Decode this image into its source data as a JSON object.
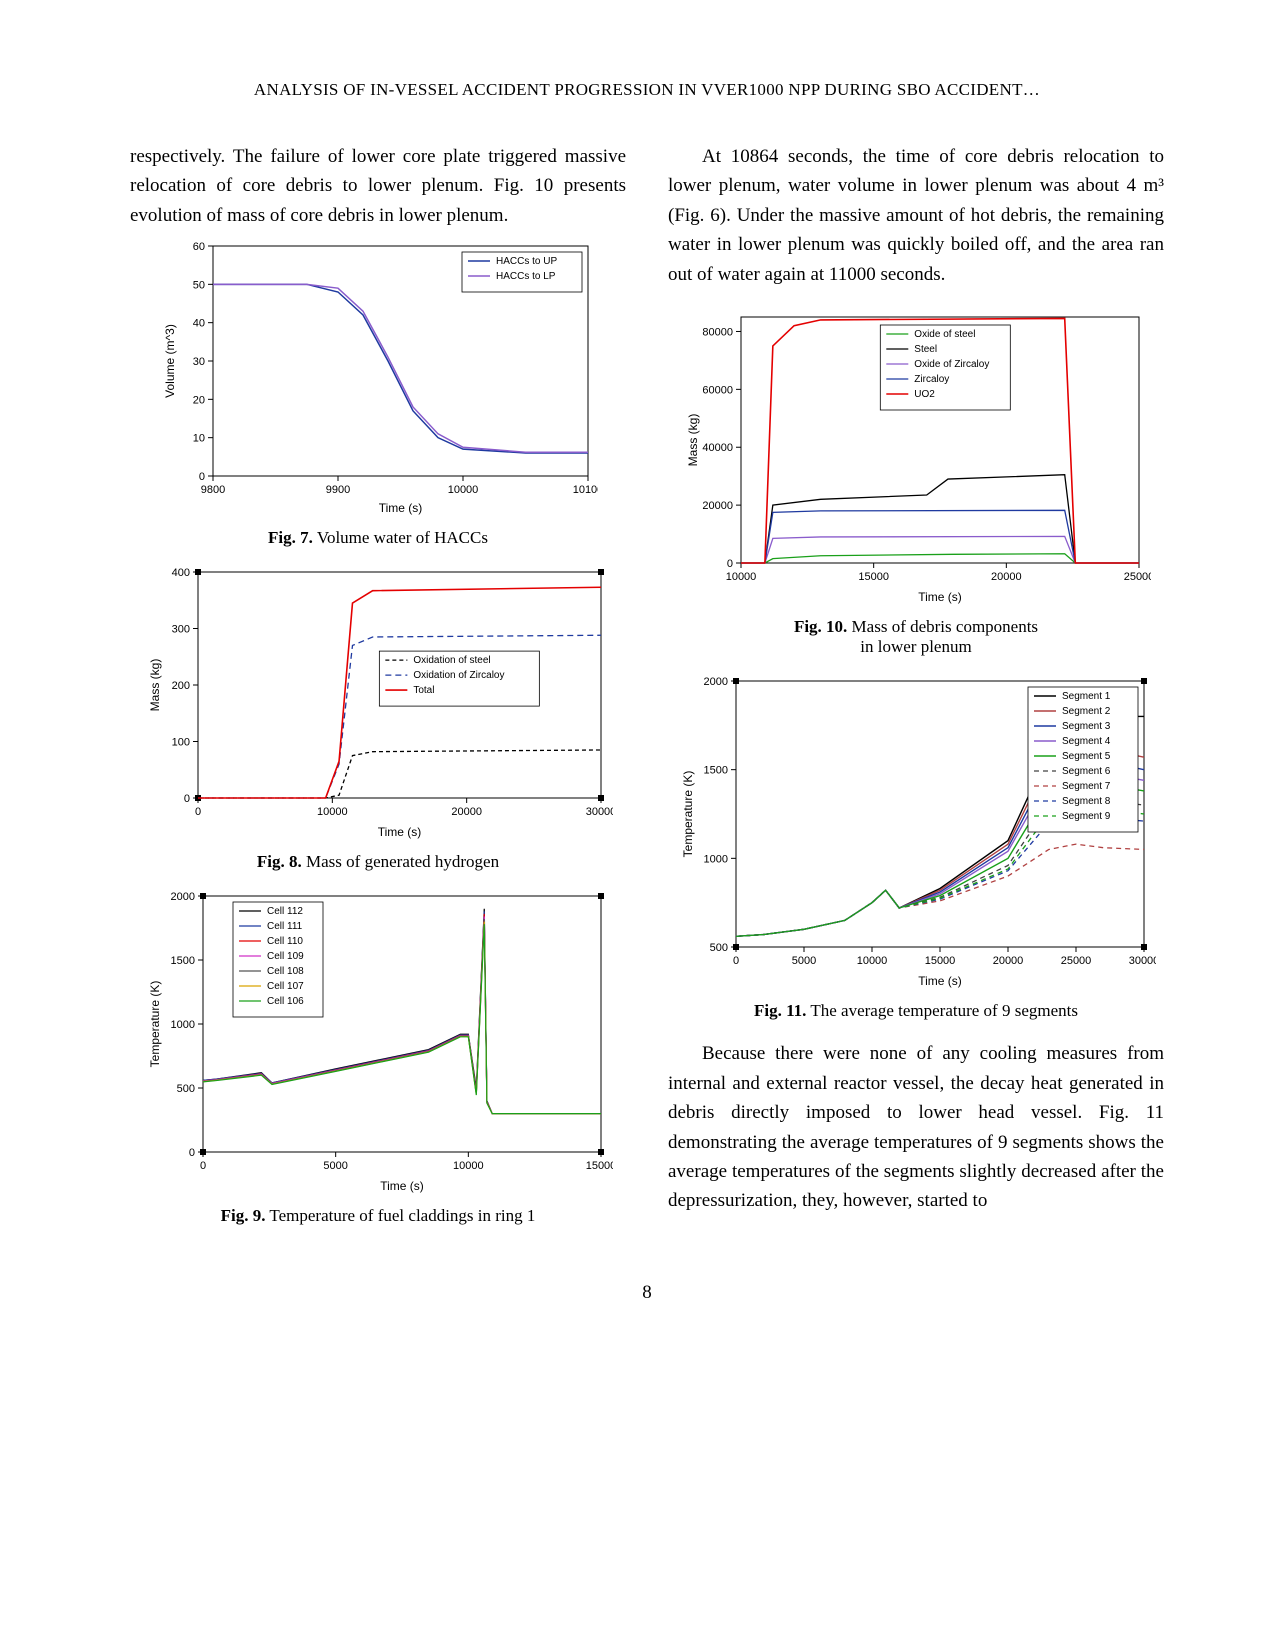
{
  "runningHead": "ANALYSIS OF IN-VESSEL ACCIDENT PROGRESSION IN VVER1000 NPP DURING SBO ACCIDENT…",
  "pageNumber": "8",
  "leftCol": {
    "para1": "respectively. The failure of lower core plate triggered massive relocation of core debris to lower plenum. Fig. 10 presents evolution of mass of core debris in lower plenum."
  },
  "rightCol": {
    "para1": "At 10864 seconds, the time of core debris relocation to lower plenum, water volume in lower plenum was about 4 m³ (Fig. 6). Under the massive amount of hot debris, the remaining water in lower plenum was quickly boiled off, and the area ran out of water again at 11000 seconds.",
    "para2": "Because there were none of any cooling measures from internal and external reactor vessel, the decay heat generated in debris directly imposed to lower head vessel. Fig. 11 demonstrating the average temperatures of 9 segments shows the average temperatures of the segments slightly decreased after the depressurization, they, however, started to"
  },
  "fig7": {
    "type": "line",
    "title": "Volume water of HACCs",
    "captionPrefix": "Fig. 7.",
    "caption": "Volume water of HACCs",
    "xlabel": "Time (s)",
    "ylabel": "Volume (m^3)",
    "label_fontsize": 11,
    "xlim": [
      9800,
      10100
    ],
    "xtick_step": 100,
    "ylim": [
      0,
      60
    ],
    "ytick_step": 10,
    "background_color": "#ffffff",
    "axis_color": "#000000",
    "series": [
      {
        "name": "HACCs to UP",
        "color": "#1f3aa0",
        "width": 1.5,
        "x": [
          9800,
          9875,
          9900,
          9920,
          9940,
          9960,
          9980,
          10000,
          10050,
          10100
        ],
        "y": [
          50,
          50,
          48,
          42,
          30,
          17,
          10,
          7,
          6,
          6
        ]
      },
      {
        "name": "HACCs to LP",
        "color": "#8a5ccc",
        "width": 1.5,
        "x": [
          9800,
          9875,
          9900,
          9920,
          9940,
          9960,
          9980,
          10000,
          10050,
          10100
        ],
        "y": [
          50,
          50,
          49,
          43,
          31,
          18,
          11,
          7.5,
          6.2,
          6.2
        ]
      }
    ],
    "legend_position": "top-right"
  },
  "fig8": {
    "type": "line",
    "captionPrefix": "Fig. 8.",
    "caption": "Mass of generated hydrogen",
    "xlabel": "Time (s)",
    "ylabel": "Mass (kg)",
    "label_fontsize": 11,
    "xlim": [
      0,
      30000
    ],
    "xtick_step": 10000,
    "ylim": [
      0,
      400
    ],
    "ytick_step": 100,
    "background_color": "#ffffff",
    "series": [
      {
        "name": "Oxidation of steel",
        "color": "#000000",
        "dash": "4,3",
        "width": 1.3,
        "x": [
          0,
          9500,
          10500,
          11500,
          13000,
          30000
        ],
        "y": [
          0,
          0,
          5,
          75,
          82,
          85
        ]
      },
      {
        "name": "Oxidation of Zircaloy",
        "color": "#1f3aa0",
        "dash": "6,4",
        "width": 1.3,
        "x": [
          0,
          9500,
          10500,
          11500,
          13000,
          30000
        ],
        "y": [
          0,
          0,
          60,
          270,
          285,
          288
        ]
      },
      {
        "name": "Total",
        "color": "#e40000",
        "width": 1.6,
        "x": [
          0,
          9500,
          10500,
          11500,
          13000,
          30000
        ],
        "y": [
          0,
          0,
          65,
          345,
          367,
          373
        ]
      }
    ],
    "legend_position": "center-right"
  },
  "fig9": {
    "type": "line",
    "captionPrefix": "Fig. 9.",
    "caption": "Temperature of fuel claddings in ring 1",
    "xlabel": "Time (s)",
    "ylabel": "Temperature (K)",
    "label_fontsize": 11,
    "xlim": [
      0,
      15000
    ],
    "xtick_step": 5000,
    "ylim": [
      0,
      2000
    ],
    "ytick_step": 500,
    "background_color": "#ffffff",
    "series": [
      {
        "name": "Cell 112",
        "color": "#000000",
        "width": 1.2,
        "x": [
          0,
          500,
          2200,
          2600,
          5000,
          8500,
          9700,
          10000,
          10300,
          10600,
          10700,
          10900,
          15000
        ],
        "y": [
          560,
          570,
          620,
          540,
          650,
          800,
          920,
          920,
          500,
          1900,
          400,
          300,
          300
        ]
      },
      {
        "name": "Cell 111",
        "color": "#1f3aa0",
        "width": 1.2,
        "x": [
          0,
          500,
          2200,
          2600,
          5000,
          8500,
          9700,
          10000,
          10300,
          10600,
          10700,
          10900,
          15000
        ],
        "y": [
          560,
          570,
          615,
          540,
          645,
          795,
          915,
          915,
          480,
          1880,
          400,
          300,
          300
        ]
      },
      {
        "name": "Cell 110",
        "color": "#e40000",
        "width": 1.2,
        "x": [
          0,
          500,
          2200,
          2600,
          5000,
          8500,
          9700,
          10000,
          10300,
          10600,
          10700,
          10900,
          15000
        ],
        "y": [
          555,
          565,
          610,
          535,
          640,
          790,
          910,
          910,
          470,
          1860,
          395,
          300,
          300
        ]
      },
      {
        "name": "Cell 109",
        "color": "#d030c8",
        "width": 1.2,
        "x": [
          0,
          500,
          2200,
          2600,
          5000,
          8500,
          9700,
          10000,
          10300,
          10600,
          10700,
          10900,
          15000
        ],
        "y": [
          555,
          565,
          608,
          535,
          638,
          788,
          908,
          908,
          460,
          1840,
          390,
          300,
          300
        ]
      },
      {
        "name": "Cell 108",
        "color": "#555555",
        "width": 1.2,
        "x": [
          0,
          500,
          2200,
          2600,
          5000,
          8500,
          9700,
          10000,
          10300,
          10600,
          10700,
          10900,
          15000
        ],
        "y": [
          552,
          562,
          605,
          532,
          635,
          785,
          905,
          905,
          455,
          1820,
          388,
          300,
          300
        ]
      },
      {
        "name": "Cell 107",
        "color": "#d9a400",
        "width": 1.2,
        "x": [
          0,
          500,
          2200,
          2600,
          5000,
          8500,
          9700,
          10000,
          10300,
          10600,
          10700,
          10900,
          15000
        ],
        "y": [
          550,
          560,
          602,
          530,
          632,
          782,
          902,
          902,
          450,
          1800,
          385,
          300,
          300
        ]
      },
      {
        "name": "Cell 106",
        "color": "#1aa01a",
        "width": 1.2,
        "x": [
          0,
          500,
          2200,
          2600,
          5000,
          8500,
          9700,
          10000,
          10300,
          10600,
          10700,
          10900,
          15000
        ],
        "y": [
          548,
          558,
          600,
          528,
          630,
          780,
          900,
          900,
          445,
          1780,
          382,
          300,
          300
        ]
      }
    ],
    "legend_position": "top-left-inset"
  },
  "fig10": {
    "type": "line",
    "captionPrefix": "Fig. 10.",
    "caption": "Mass of debris components",
    "captionLine2": "in lower plenum",
    "xlabel": "Time (s)",
    "ylabel": "Mass (kg)",
    "label_fontsize": 11,
    "xlim": [
      10000,
      25000
    ],
    "xtick_step": 5000,
    "ylim": [
      0,
      85000
    ],
    "ytick_step": 20000,
    "background_color": "#ffffff",
    "series": [
      {
        "name": "Oxide of steel",
        "color": "#1aa01a",
        "width": 1.3,
        "x": [
          10000,
          10900,
          11200,
          13000,
          18000,
          22200,
          22600,
          25000
        ],
        "y": [
          0,
          0,
          1500,
          2500,
          3000,
          3200,
          0,
          0
        ]
      },
      {
        "name": "Steel",
        "color": "#000000",
        "width": 1.3,
        "x": [
          10000,
          10900,
          11200,
          13000,
          17000,
          17800,
          22200,
          22600,
          25000
        ],
        "y": [
          0,
          0,
          20000,
          22000,
          23500,
          29000,
          30500,
          0,
          0
        ]
      },
      {
        "name": "Oxide of Zircaloy",
        "color": "#8a5ccc",
        "width": 1.3,
        "x": [
          10000,
          10900,
          11200,
          13000,
          22200,
          22600,
          25000
        ],
        "y": [
          0,
          0,
          8500,
          9000,
          9200,
          0,
          0
        ]
      },
      {
        "name": "Zircaloy",
        "color": "#1f3aa0",
        "width": 1.3,
        "x": [
          10000,
          10900,
          11200,
          13000,
          22200,
          22600,
          25000
        ],
        "y": [
          0,
          0,
          17500,
          18000,
          18200,
          0,
          0
        ]
      },
      {
        "name": "UO2",
        "color": "#e40000",
        "width": 1.6,
        "x": [
          10000,
          10900,
          11200,
          12000,
          13000,
          22200,
          22600,
          25000
        ],
        "y": [
          0,
          0,
          75000,
          82000,
          84000,
          84500,
          0,
          0
        ]
      }
    ],
    "legend_position": "top-center"
  },
  "fig11": {
    "type": "line",
    "captionPrefix": "Fig. 11.",
    "caption": "The average temperature of 9 segments",
    "xlabel": "Time (s)",
    "ylabel": "Temperature (K)",
    "label_fontsize": 11,
    "xlim": [
      0,
      30000
    ],
    "xtick_step": 5000,
    "ylim": [
      500,
      2000
    ],
    "ytick_step": 500,
    "background_color": "#ffffff",
    "series": [
      {
        "name": "Segment 1",
        "color": "#000000",
        "width": 1.4,
        "x": [
          0,
          2000,
          5000,
          8000,
          10000,
          11000,
          12000,
          15000,
          20000,
          23000,
          25000,
          27000,
          30000
        ],
        "y": [
          560,
          570,
          600,
          650,
          750,
          820,
          720,
          830,
          1100,
          1600,
          1830,
          1800,
          1800
        ]
      },
      {
        "name": "Segment 2",
        "color": "#b04040",
        "width": 1.4,
        "x": [
          0,
          2000,
          5000,
          8000,
          10000,
          11000,
          12000,
          15000,
          20000,
          23000,
          25000,
          27000,
          30000
        ],
        "y": [
          560,
          570,
          600,
          650,
          750,
          820,
          720,
          820,
          1080,
          1550,
          1780,
          1620,
          1570
        ]
      },
      {
        "name": "Segment 3",
        "color": "#1f3aa0",
        "width": 1.4,
        "x": [
          0,
          2000,
          5000,
          8000,
          10000,
          11000,
          12000,
          15000,
          20000,
          23000,
          25000,
          27000,
          30000
        ],
        "y": [
          560,
          570,
          600,
          650,
          750,
          820,
          720,
          810,
          1060,
          1500,
          1720,
          1550,
          1500
        ]
      },
      {
        "name": "Segment 4",
        "color": "#8a5ccc",
        "width": 1.4,
        "x": [
          0,
          2000,
          5000,
          8000,
          10000,
          11000,
          12000,
          15000,
          20000,
          23000,
          25000,
          27000,
          30000
        ],
        "y": [
          560,
          570,
          600,
          650,
          750,
          820,
          720,
          800,
          1040,
          1450,
          1640,
          1480,
          1440
        ]
      },
      {
        "name": "Segment 5",
        "color": "#1aa01a",
        "width": 1.4,
        "x": [
          0,
          2000,
          5000,
          8000,
          10000,
          11000,
          12000,
          15000,
          20000,
          23000,
          25000,
          27000,
          30000
        ],
        "y": [
          560,
          570,
          600,
          650,
          750,
          820,
          720,
          790,
          1000,
          1380,
          1560,
          1420,
          1380
        ]
      },
      {
        "name": "Segment 6",
        "color": "#404040",
        "dash": "5,4",
        "width": 1.3,
        "x": [
          0,
          2000,
          5000,
          8000,
          10000,
          11000,
          12000,
          15000,
          20000,
          23000,
          25000,
          27000,
          30000
        ],
        "y": [
          560,
          570,
          600,
          650,
          750,
          820,
          720,
          780,
          960,
          1300,
          1440,
          1330,
          1300
        ]
      },
      {
        "name": "Segment 7",
        "color": "#b04040",
        "dash": "5,4",
        "width": 1.3,
        "x": [
          0,
          2000,
          5000,
          8000,
          10000,
          11000,
          12000,
          15000,
          20000,
          23000,
          25000,
          27000,
          30000
        ],
        "y": [
          560,
          570,
          600,
          650,
          750,
          820,
          720,
          760,
          900,
          1050,
          1080,
          1060,
          1050
        ]
      },
      {
        "name": "Segment 8",
        "color": "#1f3aa0",
        "dash": "5,4",
        "width": 1.3,
        "x": [
          0,
          2000,
          5000,
          8000,
          10000,
          11000,
          12000,
          15000,
          20000,
          23000,
          25000,
          27000,
          30000
        ],
        "y": [
          560,
          570,
          600,
          650,
          750,
          820,
          720,
          770,
          930,
          1200,
          1300,
          1230,
          1210
        ]
      },
      {
        "name": "Segment 9",
        "color": "#1aa01a",
        "dash": "5,4",
        "width": 1.3,
        "x": [
          0,
          2000,
          5000,
          8000,
          10000,
          11000,
          12000,
          15000,
          20000,
          23000,
          25000,
          27000,
          30000
        ],
        "y": [
          560,
          570,
          600,
          650,
          750,
          820,
          720,
          775,
          940,
          1250,
          1350,
          1280,
          1250
        ]
      }
    ],
    "legend_position": "top-right"
  }
}
